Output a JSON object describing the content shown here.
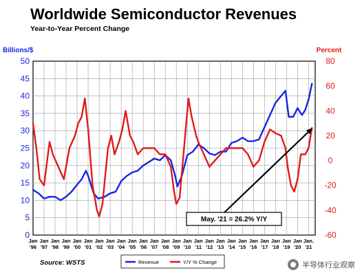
{
  "chart_data": {
    "type": "line",
    "title": "Worldwide Semiconductor Revenues",
    "subtitle": "Year-to-Year Percent Change",
    "ylabel_left": "Billions/$",
    "ylabel_right": "Percent",
    "ylim_left": [
      0,
      50
    ],
    "ylim_right": [
      -60,
      80
    ],
    "yticks_left": [
      "0",
      "5",
      "10",
      "15",
      "20",
      "25",
      "30",
      "35",
      "40",
      "45",
      "50"
    ],
    "yticks_right": [
      "-60",
      "-40",
      "-20",
      "0",
      "20",
      "40",
      "60",
      "80"
    ],
    "x_tick_labels": [
      [
        "Jan",
        "'96"
      ],
      [
        "Jan",
        "'97"
      ],
      [
        "Jan",
        "'98"
      ],
      [
        "Jan",
        "'99"
      ],
      [
        "Jan",
        "'00"
      ],
      [
        "Jan",
        "'01"
      ],
      [
        "Jan",
        "'02"
      ],
      [
        "Jan",
        "'03"
      ],
      [
        "Jan",
        "'04"
      ],
      [
        "Jan",
        "'05"
      ],
      [
        "Jan",
        "'06"
      ],
      [
        "Jan",
        "'07"
      ],
      [
        "Jan",
        "'08"
      ],
      [
        "Jan",
        "'09"
      ],
      [
        "Jan",
        "'10"
      ],
      [
        "Jan",
        "'11"
      ],
      [
        "Jan",
        "'12"
      ],
      [
        "Jan",
        "'13"
      ],
      [
        "Jan",
        "'14"
      ],
      [
        "Jan",
        "'15"
      ],
      [
        "Jan",
        "'16"
      ],
      [
        "Jan",
        "'17"
      ],
      [
        "Jan",
        "'18"
      ],
      [
        "Jan",
        "'19"
      ],
      [
        "Jan",
        "'20"
      ],
      [
        "Jan.",
        "'21"
      ]
    ],
    "grid": true,
    "legend_position": "bottom",
    "series": [
      {
        "name": "Revenue",
        "axis": "left",
        "color": "#1a24e0",
        "x": [
          1996.0,
          1996.5,
          1997.0,
          1997.5,
          1998.0,
          1998.5,
          1999.0,
          1999.5,
          2000.0,
          2000.4,
          2000.8,
          2001.0,
          2001.5,
          2001.9,
          2002.5,
          2003.0,
          2003.5,
          2004.0,
          2004.5,
          2005.0,
          2005.5,
          2006.0,
          2006.5,
          2007.0,
          2007.5,
          2008.0,
          2008.5,
          2008.9,
          2009.1,
          2009.5,
          2010.0,
          2010.5,
          2011.0,
          2011.5,
          2012.0,
          2012.5,
          2013.0,
          2013.5,
          2014.0,
          2014.5,
          2015.0,
          2015.5,
          2016.0,
          2016.5,
          2017.0,
          2017.5,
          2018.0,
          2018.5,
          2018.9,
          2019.2,
          2019.6,
          2020.0,
          2020.4,
          2020.7,
          2021.0,
          2021.3
        ],
        "values": [
          13,
          12,
          10.5,
          11,
          11,
          10,
          11,
          12.5,
          14.5,
          16,
          18.5,
          17,
          12,
          10.5,
          11,
          12,
          12.5,
          15.5,
          17,
          18,
          18.5,
          20,
          21,
          22,
          21.5,
          23,
          21.5,
          17,
          14,
          17,
          23,
          24,
          26,
          25,
          23.5,
          23,
          24,
          24,
          26.5,
          27,
          28,
          27,
          27,
          27.5,
          31,
          34.5,
          38,
          40,
          41.5,
          34,
          34,
          36.5,
          34.5,
          36,
          39,
          43.5
        ]
      },
      {
        "name": "Y/Y % Change",
        "axis": "right",
        "color": "#e01a1a",
        "x": [
          1996.0,
          1996.3,
          1996.6,
          1997.0,
          1997.5,
          1997.8,
          1998.3,
          1998.8,
          1999.3,
          1999.8,
          2000.1,
          2000.4,
          2000.7,
          2001.0,
          2001.4,
          2001.8,
          2002.0,
          2002.3,
          2002.8,
          2003.1,
          2003.4,
          2003.8,
          2004.1,
          2004.4,
          2004.8,
          2005.1,
          2005.5,
          2006.0,
          2006.5,
          2007.0,
          2007.5,
          2008.0,
          2008.5,
          2008.8,
          2009.0,
          2009.3,
          2009.6,
          2009.9,
          2010.1,
          2010.4,
          2010.8,
          2011.0,
          2011.5,
          2012.0,
          2012.5,
          2013.0,
          2013.5,
          2014.0,
          2014.5,
          2015.0,
          2015.5,
          2016.0,
          2016.5,
          2017.0,
          2017.5,
          2018.0,
          2018.5,
          2018.9,
          2019.1,
          2019.4,
          2019.7,
          2020.0,
          2020.3,
          2020.7,
          2021.0,
          2021.3
        ],
        "values": [
          30,
          10,
          -15,
          -20,
          15,
          5,
          -5,
          -15,
          10,
          20,
          30,
          35,
          50,
          25,
          -20,
          -40,
          -45,
          -35,
          10,
          20,
          5,
          15,
          25,
          40,
          20,
          15,
          5,
          10,
          10,
          10,
          5,
          5,
          -5,
          -25,
          -35,
          -30,
          0,
          30,
          50,
          35,
          20,
          15,
          5,
          -5,
          0,
          5,
          10,
          10,
          10,
          10,
          5,
          -5,
          0,
          15,
          25,
          22,
          20,
          10,
          -5,
          -20,
          -25,
          -15,
          5,
          5,
          10,
          26.2
        ]
      }
    ],
    "annotations": [
      {
        "text": "May. '21 = 26.2% Y/Y",
        "arrow_target": [
          2021.35,
          26.2
        ],
        "arrow_axis": "right"
      }
    ]
  },
  "source_note": "Source: WSTS",
  "watermark_text": "半导体行业观察"
}
